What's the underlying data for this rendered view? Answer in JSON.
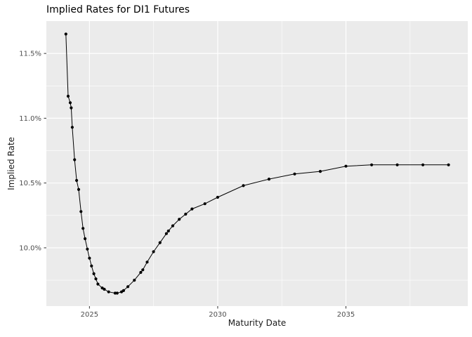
{
  "chart": {
    "title": "Implied Rates for DI1 Futures",
    "xlabel": "Maturity Date",
    "ylabel": "Implied Rate"
  },
  "chart_data": {
    "type": "line",
    "title": "Implied Rates for DI1 Futures",
    "xlabel": "Maturity Date",
    "ylabel": "Implied Rate",
    "legend": "none",
    "grid": true,
    "x": [
      2024.08,
      2024.17,
      2024.25,
      2024.29,
      2024.33,
      2024.42,
      2024.5,
      2024.58,
      2024.67,
      2024.75,
      2024.83,
      2024.92,
      2025.0,
      2025.08,
      2025.17,
      2025.25,
      2025.33,
      2025.5,
      2025.58,
      2025.75,
      2026.0,
      2026.08,
      2026.25,
      2026.33,
      2026.5,
      2026.75,
      2027.0,
      2027.08,
      2027.25,
      2027.5,
      2027.75,
      2028.0,
      2028.08,
      2028.25,
      2028.5,
      2028.75,
      2029.0,
      2029.5,
      2030.0,
      2031.0,
      2032.0,
      2033.0,
      2034.0,
      2035.0,
      2036.0,
      2037.0,
      2038.0,
      2039.0
    ],
    "y": [
      11.65,
      11.17,
      11.12,
      11.08,
      10.93,
      10.68,
      10.52,
      10.45,
      10.28,
      10.15,
      10.07,
      9.99,
      9.92,
      9.86,
      9.8,
      9.76,
      9.72,
      9.69,
      9.68,
      9.66,
      9.65,
      9.65,
      9.66,
      9.67,
      9.7,
      9.75,
      9.81,
      9.83,
      9.89,
      9.97,
      10.04,
      10.11,
      10.13,
      10.17,
      10.22,
      10.26,
      10.3,
      10.34,
      10.39,
      10.48,
      10.53,
      10.57,
      10.59,
      10.63,
      10.64,
      10.64,
      10.64,
      10.64
    ],
    "xlim": [
      2023.32,
      2039.75
    ],
    "ylim": [
      9.55,
      11.75
    ],
    "x_ticks": [
      2025,
      2030,
      2035
    ],
    "x_tick_labels": [
      "2025",
      "2030",
      "2035"
    ],
    "x_minor_ticks": [
      2027.5,
      2032.5,
      2037.5
    ],
    "y_ticks": [
      10.0,
      10.5,
      11.0,
      11.5
    ],
    "y_tick_labels": [
      "10.0%",
      "10.5%",
      "11.0%",
      "11.5%"
    ],
    "y_minor_ticks": [
      9.75,
      10.25,
      10.75,
      11.25
    ],
    "styles": {
      "panel_bg": "#EBEBEB",
      "grid_major": "#FFFFFF",
      "grid_minor": "#FFFFFF",
      "line": "#000000",
      "point": "#000000",
      "tick_mark": "#333333",
      "tick_label": "#4D4D4D",
      "axis_title": "#1A1A1A",
      "title": "#000000"
    }
  }
}
